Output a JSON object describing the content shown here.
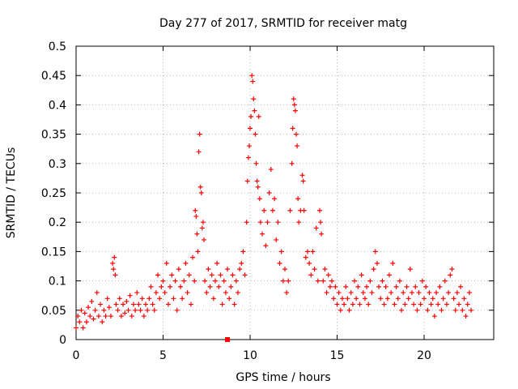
{
  "chart_data": {
    "type": "scatter",
    "title": "Day 277 of 2017, SRMTID for receiver matg",
    "xlabel": "GPS time / hours",
    "ylabel": "SRMTID / TECUs",
    "xlim": [
      0,
      24
    ],
    "ylim": [
      0,
      0.5
    ],
    "grid": true,
    "x_ticks": [
      0,
      5,
      10,
      15,
      20
    ],
    "x_tick_labels": [
      "0",
      "5",
      "10",
      "15",
      "20"
    ],
    "y_ticks": [
      0,
      0.05,
      0.1,
      0.15,
      0.2,
      0.25,
      0.3,
      0.35,
      0.4,
      0.45,
      0.5
    ],
    "y_tick_labels": [
      "0",
      "0.05",
      "0.1",
      "0.15",
      "0.2",
      "0.25",
      "0.3",
      "0.35",
      "0.4",
      "0.45",
      "0.5"
    ],
    "marker": "plus",
    "marker_color": "#ff0000",
    "series": [
      {
        "name": "SRMTID",
        "points": [
          [
            0.0,
            0.02
          ],
          [
            0.1,
            0.04
          ],
          [
            0.2,
            0.03
          ],
          [
            0.3,
            0.05
          ],
          [
            0.4,
            0.02
          ],
          [
            0.5,
            0.045
          ],
          [
            0.6,
            0.03
          ],
          [
            0.7,
            0.055
          ],
          [
            0.8,
            0.04
          ],
          [
            0.9,
            0.065
          ],
          [
            1.0,
            0.035
          ],
          [
            1.1,
            0.05
          ],
          [
            1.2,
            0.08
          ],
          [
            1.3,
            0.04
          ],
          [
            1.4,
            0.06
          ],
          [
            1.5,
            0.03
          ],
          [
            1.6,
            0.05
          ],
          [
            1.7,
            0.04
          ],
          [
            1.8,
            0.07
          ],
          [
            1.9,
            0.055
          ],
          [
            2.0,
            0.04
          ],
          [
            2.1,
            0.13
          ],
          [
            2.15,
            0.12
          ],
          [
            2.2,
            0.14
          ],
          [
            2.25,
            0.11
          ],
          [
            2.3,
            0.06
          ],
          [
            2.4,
            0.05
          ],
          [
            2.5,
            0.07
          ],
          [
            2.6,
            0.04
          ],
          [
            2.7,
            0.06
          ],
          [
            2.8,
            0.045
          ],
          [
            2.9,
            0.065
          ],
          [
            3.0,
            0.05
          ],
          [
            3.1,
            0.075
          ],
          [
            3.2,
            0.04
          ],
          [
            3.3,
            0.06
          ],
          [
            3.4,
            0.05
          ],
          [
            3.5,
            0.08
          ],
          [
            3.6,
            0.06
          ],
          [
            3.7,
            0.05
          ],
          [
            3.8,
            0.07
          ],
          [
            3.9,
            0.04
          ],
          [
            4.0,
            0.06
          ],
          [
            4.1,
            0.05
          ],
          [
            4.2,
            0.07
          ],
          [
            4.3,
            0.09
          ],
          [
            4.4,
            0.06
          ],
          [
            4.5,
            0.05
          ],
          [
            4.6,
            0.08
          ],
          [
            4.7,
            0.11
          ],
          [
            4.8,
            0.07
          ],
          [
            4.9,
            0.09
          ],
          [
            5.0,
            0.1
          ],
          [
            5.1,
            0.08
          ],
          [
            5.2,
            0.13
          ],
          [
            5.3,
            0.06
          ],
          [
            5.4,
            0.09
          ],
          [
            5.5,
            0.11
          ],
          [
            5.6,
            0.07
          ],
          [
            5.7,
            0.1
          ],
          [
            5.8,
            0.05
          ],
          [
            5.9,
            0.12
          ],
          [
            6.0,
            0.09
          ],
          [
            6.1,
            0.07
          ],
          [
            6.2,
            0.1
          ],
          [
            6.3,
            0.13
          ],
          [
            6.4,
            0.08
          ],
          [
            6.5,
            0.11
          ],
          [
            6.6,
            0.06
          ],
          [
            6.7,
            0.14
          ],
          [
            6.8,
            0.1
          ],
          [
            6.85,
            0.22
          ],
          [
            6.9,
            0.21
          ],
          [
            6.95,
            0.18
          ],
          [
            7.0,
            0.15
          ],
          [
            7.05,
            0.32
          ],
          [
            7.1,
            0.35
          ],
          [
            7.15,
            0.26
          ],
          [
            7.2,
            0.25
          ],
          [
            7.25,
            0.19
          ],
          [
            7.3,
            0.2
          ],
          [
            7.35,
            0.17
          ],
          [
            7.4,
            0.1
          ],
          [
            7.5,
            0.08
          ],
          [
            7.6,
            0.12
          ],
          [
            7.7,
            0.09
          ],
          [
            7.8,
            0.11
          ],
          [
            7.9,
            0.07
          ],
          [
            8.0,
            0.1
          ],
          [
            8.1,
            0.13
          ],
          [
            8.2,
            0.09
          ],
          [
            8.3,
            0.11
          ],
          [
            8.4,
            0.06
          ],
          [
            8.5,
            0.1
          ],
          [
            8.6,
            0.08
          ],
          [
            8.7,
            0.12
          ],
          [
            8.8,
            0.07
          ],
          [
            8.9,
            0.09
          ],
          [
            9.0,
            0.11
          ],
          [
            9.1,
            0.06
          ],
          [
            9.2,
            0.1
          ],
          [
            9.3,
            0.08
          ],
          [
            9.4,
            0.12
          ],
          [
            9.5,
            0.13
          ],
          [
            9.6,
            0.15
          ],
          [
            9.7,
            0.11
          ],
          [
            9.8,
            0.2
          ],
          [
            9.85,
            0.27
          ],
          [
            9.9,
            0.31
          ],
          [
            9.95,
            0.33
          ],
          [
            10.0,
            0.36
          ],
          [
            10.05,
            0.38
          ],
          [
            10.1,
            0.45
          ],
          [
            10.15,
            0.44
          ],
          [
            10.2,
            0.41
          ],
          [
            10.25,
            0.39
          ],
          [
            10.3,
            0.35
          ],
          [
            10.35,
            0.3
          ],
          [
            10.4,
            0.27
          ],
          [
            10.45,
            0.26
          ],
          [
            10.5,
            0.38
          ],
          [
            10.55,
            0.24
          ],
          [
            10.6,
            0.2
          ],
          [
            10.7,
            0.18
          ],
          [
            10.8,
            0.22
          ],
          [
            10.9,
            0.16
          ],
          [
            11.0,
            0.2
          ],
          [
            11.1,
            0.25
          ],
          [
            11.2,
            0.29
          ],
          [
            11.3,
            0.22
          ],
          [
            11.4,
            0.24
          ],
          [
            11.5,
            0.17
          ],
          [
            11.6,
            0.2
          ],
          [
            11.7,
            0.13
          ],
          [
            11.8,
            0.15
          ],
          [
            11.9,
            0.1
          ],
          [
            12.0,
            0.12
          ],
          [
            12.1,
            0.08
          ],
          [
            12.2,
            0.1
          ],
          [
            12.3,
            0.22
          ],
          [
            12.4,
            0.3
          ],
          [
            12.45,
            0.36
          ],
          [
            12.5,
            0.41
          ],
          [
            12.55,
            0.4
          ],
          [
            12.6,
            0.39
          ],
          [
            12.65,
            0.35
          ],
          [
            12.7,
            0.33
          ],
          [
            12.75,
            0.24
          ],
          [
            12.8,
            0.2
          ],
          [
            12.9,
            0.22
          ],
          [
            13.0,
            0.28
          ],
          [
            13.05,
            0.27
          ],
          [
            13.1,
            0.22
          ],
          [
            13.2,
            0.14
          ],
          [
            13.3,
            0.15
          ],
          [
            13.4,
            0.13
          ],
          [
            13.5,
            0.11
          ],
          [
            13.6,
            0.15
          ],
          [
            13.7,
            0.12
          ],
          [
            13.8,
            0.19
          ],
          [
            13.9,
            0.1
          ],
          [
            14.0,
            0.22
          ],
          [
            14.05,
            0.2
          ],
          [
            14.1,
            0.18
          ],
          [
            14.2,
            0.1
          ],
          [
            14.3,
            0.12
          ],
          [
            14.4,
            0.08
          ],
          [
            14.5,
            0.11
          ],
          [
            14.6,
            0.09
          ],
          [
            14.7,
            0.1
          ],
          [
            14.8,
            0.07
          ],
          [
            14.9,
            0.09
          ],
          [
            15.0,
            0.06
          ],
          [
            15.1,
            0.08
          ],
          [
            15.2,
            0.05
          ],
          [
            15.3,
            0.07
          ],
          [
            15.4,
            0.06
          ],
          [
            15.5,
            0.09
          ],
          [
            15.6,
            0.07
          ],
          [
            15.7,
            0.05
          ],
          [
            15.8,
            0.08
          ],
          [
            15.9,
            0.06
          ],
          [
            16.0,
            0.1
          ],
          [
            16.1,
            0.07
          ],
          [
            16.2,
            0.09
          ],
          [
            16.3,
            0.06
          ],
          [
            16.4,
            0.11
          ],
          [
            16.5,
            0.08
          ],
          [
            16.6,
            0.07
          ],
          [
            16.7,
            0.09
          ],
          [
            16.8,
            0.06
          ],
          [
            16.9,
            0.1
          ],
          [
            17.0,
            0.08
          ],
          [
            17.1,
            0.12
          ],
          [
            17.2,
            0.15
          ],
          [
            17.3,
            0.13
          ],
          [
            17.4,
            0.09
          ],
          [
            17.5,
            0.07
          ],
          [
            17.6,
            0.1
          ],
          [
            17.7,
            0.06
          ],
          [
            17.8,
            0.09
          ],
          [
            17.9,
            0.07
          ],
          [
            18.0,
            0.11
          ],
          [
            18.1,
            0.08
          ],
          [
            18.2,
            0.13
          ],
          [
            18.3,
            0.06
          ],
          [
            18.4,
            0.09
          ],
          [
            18.5,
            0.07
          ],
          [
            18.6,
            0.1
          ],
          [
            18.7,
            0.05
          ],
          [
            18.8,
            0.08
          ],
          [
            18.9,
            0.06
          ],
          [
            19.0,
            0.09
          ],
          [
            19.1,
            0.07
          ],
          [
            19.2,
            0.12
          ],
          [
            19.3,
            0.08
          ],
          [
            19.4,
            0.06
          ],
          [
            19.5,
            0.09
          ],
          [
            19.6,
            0.05
          ],
          [
            19.7,
            0.08
          ],
          [
            19.8,
            0.06
          ],
          [
            19.9,
            0.1
          ],
          [
            20.0,
            0.07
          ],
          [
            20.1,
            0.09
          ],
          [
            20.2,
            0.05
          ],
          [
            20.3,
            0.08
          ],
          [
            20.4,
            0.06
          ],
          [
            20.5,
            0.07
          ],
          [
            20.6,
            0.04
          ],
          [
            20.7,
            0.08
          ],
          [
            20.8,
            0.06
          ],
          [
            20.9,
            0.09
          ],
          [
            21.0,
            0.05
          ],
          [
            21.1,
            0.07
          ],
          [
            21.2,
            0.1
          ],
          [
            21.3,
            0.06
          ],
          [
            21.4,
            0.08
          ],
          [
            21.5,
            0.11
          ],
          [
            21.6,
            0.12
          ],
          [
            21.7,
            0.07
          ],
          [
            21.8,
            0.05
          ],
          [
            21.9,
            0.08
          ],
          [
            22.0,
            0.06
          ],
          [
            22.1,
            0.09
          ],
          [
            22.2,
            0.05
          ],
          [
            22.3,
            0.07
          ],
          [
            22.4,
            0.04
          ],
          [
            22.5,
            0.06
          ],
          [
            22.6,
            0.08
          ],
          [
            22.7,
            0.05
          ]
        ]
      }
    ],
    "outliers": [
      {
        "marker": "square",
        "points": [
          [
            8.7,
            0.0
          ]
        ]
      }
    ]
  }
}
